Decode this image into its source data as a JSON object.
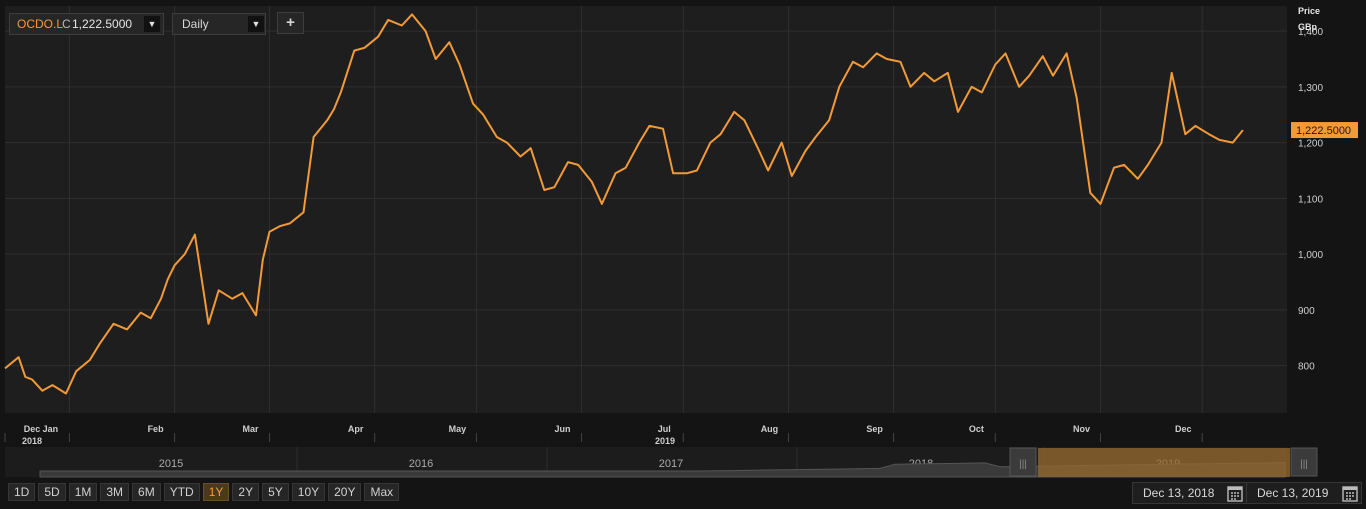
{
  "toolbar": {
    "ticker": "OCDO.L",
    "price_type": "C",
    "price": "1,222.5000",
    "interval": "Daily",
    "add_label": "+"
  },
  "colors": {
    "line": "#f39a38",
    "accent": "#f39a38",
    "background": "#1e1e1e"
  },
  "chart_data": {
    "type": "line",
    "yunit_line1": "Price",
    "yunit_line2": "GBp",
    "yticks": [
      800,
      900,
      1000,
      1100,
      1200,
      1300,
      1400
    ],
    "ytick_labels": [
      "800",
      "900",
      "1,000",
      "1,100",
      "1,200",
      "1,300",
      "1,400"
    ],
    "ylim": [
      715,
      1445
    ],
    "last_value_label": "1,222.5000",
    "xlim": [
      "2018-12-13",
      "2019-12-26"
    ],
    "month_ticks": [
      {
        "label": "Dec",
        "sub": "2018",
        "date": "2018-12-13"
      },
      {
        "label": "Jan",
        "date": "2019-01-01"
      },
      {
        "label": "Feb",
        "date": "2019-02-01"
      },
      {
        "label": "Mar",
        "date": "2019-03-01"
      },
      {
        "label": "Apr",
        "date": "2019-04-01"
      },
      {
        "label": "May",
        "date": "2019-05-01"
      },
      {
        "label": "Jun",
        "date": "2019-06-01"
      },
      {
        "label": "Jul",
        "date": "2019-07-01"
      },
      {
        "label": "Aug",
        "date": "2019-08-01"
      },
      {
        "label": "Sep",
        "date": "2019-09-01"
      },
      {
        "label": "Oct",
        "date": "2019-10-01"
      },
      {
        "label": "Nov",
        "date": "2019-11-01"
      },
      {
        "label": "Dec",
        "date": "2019-12-01"
      }
    ],
    "year_label": "2019",
    "series": [
      {
        "x": [
          "2018-12-13",
          "2018-12-17",
          "2018-12-19",
          "2018-12-21",
          "2018-12-24",
          "2018-12-27",
          "2018-12-31",
          "2019-01-03",
          "2019-01-07",
          "2019-01-10",
          "2019-01-14",
          "2019-01-18",
          "2019-01-22",
          "2019-01-25",
          "2019-01-28",
          "2019-01-30",
          "2019-02-01",
          "2019-02-04",
          "2019-02-07",
          "2019-02-11",
          "2019-02-14",
          "2019-02-18",
          "2019-02-21",
          "2019-02-25",
          "2019-02-27",
          "2019-03-01",
          "2019-03-04",
          "2019-03-07",
          "2019-03-11",
          "2019-03-14",
          "2019-03-18",
          "2019-03-20",
          "2019-03-22",
          "2019-03-26",
          "2019-03-29",
          "2019-04-02",
          "2019-04-05",
          "2019-04-09",
          "2019-04-12",
          "2019-04-16",
          "2019-04-19",
          "2019-04-23",
          "2019-04-26",
          "2019-04-30",
          "2019-05-03",
          "2019-05-07",
          "2019-05-10",
          "2019-05-14",
          "2019-05-17",
          "2019-05-21",
          "2019-05-24",
          "2019-05-28",
          "2019-05-31",
          "2019-06-04",
          "2019-06-07",
          "2019-06-11",
          "2019-06-14",
          "2019-06-18",
          "2019-06-21",
          "2019-06-25",
          "2019-06-28",
          "2019-07-02",
          "2019-07-05",
          "2019-07-09",
          "2019-07-12",
          "2019-07-16",
          "2019-07-19",
          "2019-07-23",
          "2019-07-26",
          "2019-07-30",
          "2019-08-02",
          "2019-08-06",
          "2019-08-09",
          "2019-08-13",
          "2019-08-16",
          "2019-08-20",
          "2019-08-23",
          "2019-08-27",
          "2019-08-30",
          "2019-09-03",
          "2019-09-06",
          "2019-09-10",
          "2019-09-13",
          "2019-09-17",
          "2019-09-20",
          "2019-09-24",
          "2019-09-27",
          "2019-10-01",
          "2019-10-04",
          "2019-10-08",
          "2019-10-11",
          "2019-10-15",
          "2019-10-18",
          "2019-10-22",
          "2019-10-25",
          "2019-10-29",
          "2019-11-01",
          "2019-11-05",
          "2019-11-08",
          "2019-11-12",
          "2019-11-15",
          "2019-11-19",
          "2019-11-22",
          "2019-11-26",
          "2019-11-29",
          "2019-12-03",
          "2019-12-06",
          "2019-12-10",
          "2019-12-13"
        ],
        "y": [
          795,
          815,
          780,
          775,
          755,
          765,
          750,
          790,
          810,
          840,
          875,
          865,
          895,
          885,
          920,
          955,
          980,
          1000,
          1035,
          875,
          935,
          920,
          930,
          890,
          990,
          1040,
          1050,
          1055,
          1075,
          1210,
          1240,
          1260,
          1290,
          1365,
          1370,
          1390,
          1420,
          1410,
          1430,
          1400,
          1350,
          1380,
          1340,
          1270,
          1250,
          1210,
          1200,
          1175,
          1190,
          1115,
          1120,
          1165,
          1160,
          1130,
          1090,
          1145,
          1155,
          1200,
          1230,
          1225,
          1145,
          1145,
          1150,
          1200,
          1215,
          1255,
          1240,
          1190,
          1150,
          1200,
          1140,
          1185,
          1210,
          1240,
          1300,
          1345,
          1335,
          1360,
          1350,
          1345,
          1300,
          1325,
          1310,
          1325,
          1255,
          1300,
          1290,
          1340,
          1360,
          1300,
          1320,
          1355,
          1320,
          1360,
          1280,
          1110,
          1090,
          1155,
          1160,
          1135,
          1160,
          1200,
          1325,
          1215,
          1230,
          1215,
          1205,
          1200,
          1222.5
        ]
      }
    ]
  },
  "navigator": {
    "years": [
      "2015",
      "2016",
      "2017",
      "2018",
      "2019"
    ]
  },
  "range_buttons": [
    "1D",
    "5D",
    "1M",
    "3M",
    "6M",
    "YTD",
    "1Y",
    "2Y",
    "5Y",
    "10Y",
    "20Y",
    "Max"
  ],
  "active_range": "1Y",
  "date_range": {
    "from": "Dec 13, 2018",
    "to": "Dec 13, 2019"
  }
}
